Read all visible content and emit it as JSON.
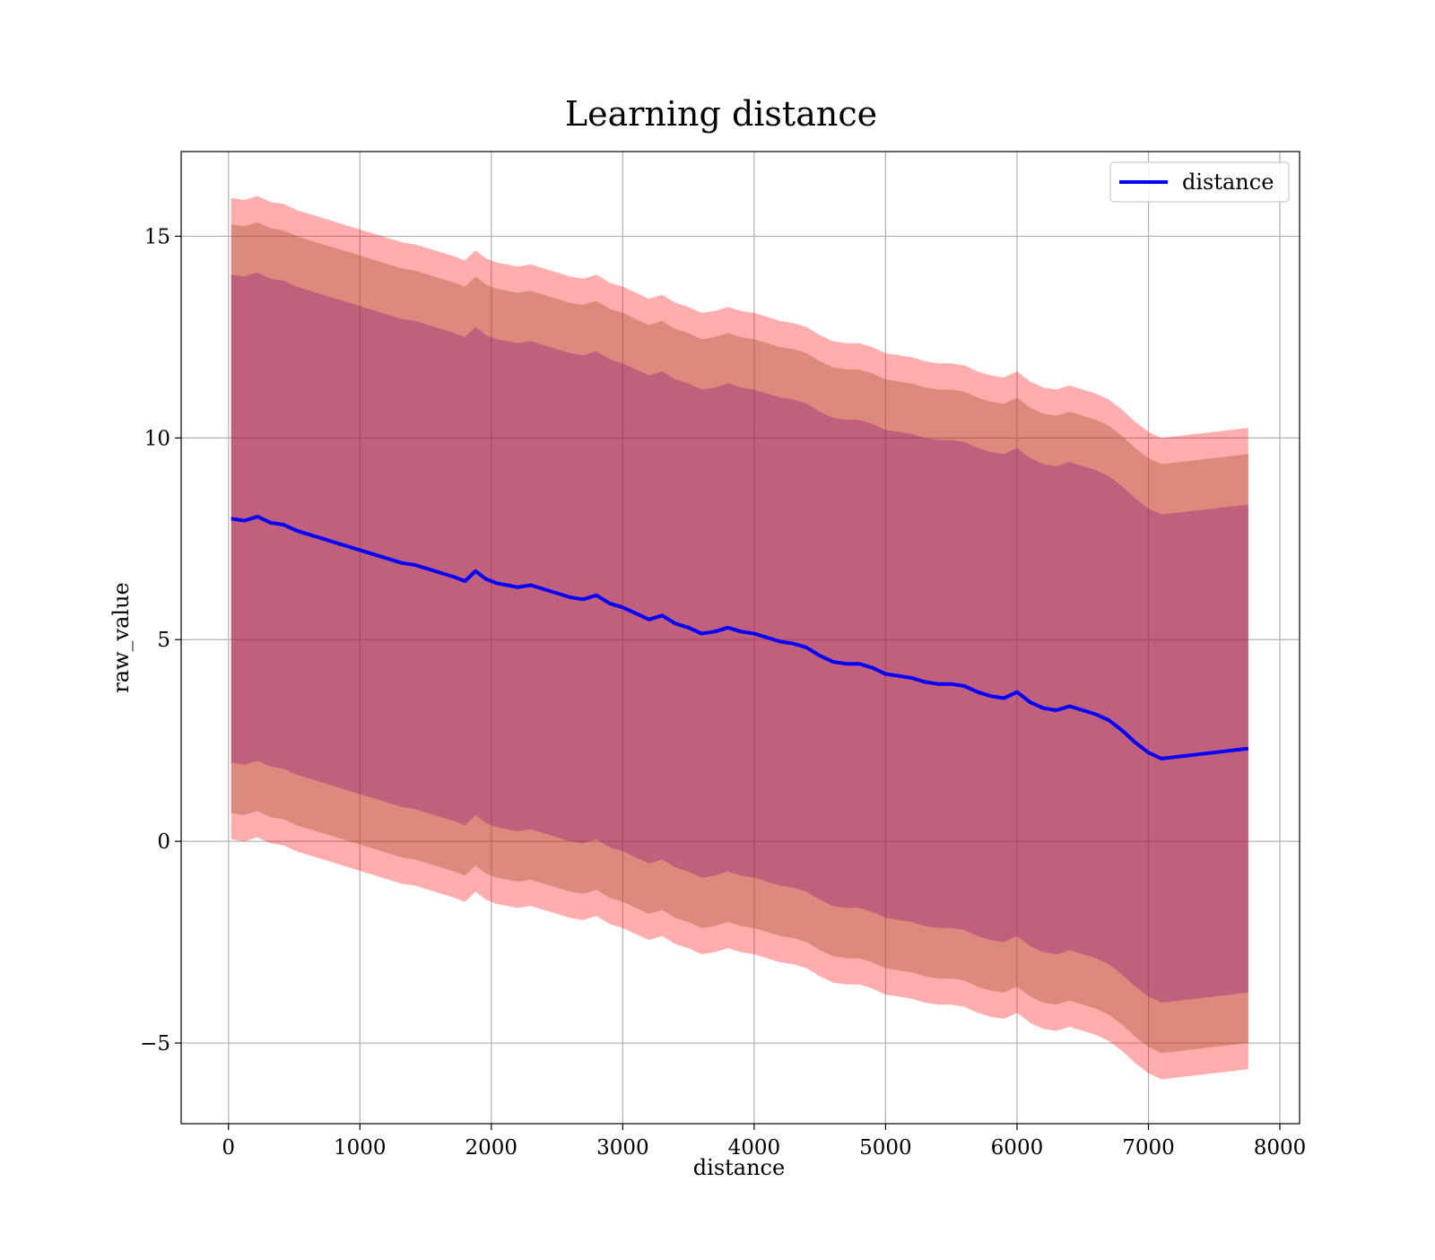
{
  "chart_data": {
    "type": "line",
    "title": "Learning distance",
    "xlabel": "distance",
    "ylabel": "raw_value",
    "xlim": [
      -360,
      8150
    ],
    "ylim": [
      -7,
      17.1
    ],
    "x_ticks": [
      0,
      1000,
      2000,
      3000,
      4000,
      5000,
      6000,
      7000,
      8000
    ],
    "x_tick_labels": [
      "0",
      "1000",
      "2000",
      "3000",
      "4000",
      "5000",
      "6000",
      "7000",
      "8000"
    ],
    "y_ticks": [
      -5,
      0,
      5,
      10,
      15
    ],
    "y_tick_labels": [
      "−5",
      "0",
      "5",
      "10",
      "15"
    ],
    "grid": true,
    "legend": {
      "position": "top-right",
      "entries": [
        "distance"
      ]
    },
    "colors": {
      "line": "#0000ff",
      "band_outer": "#ff0000",
      "band_middle": "#a0522d",
      "band_inner": "#800080"
    },
    "band_outer_opacity": 0.32,
    "band_middle_opacity": 0.38,
    "band_inner_opacity": 0.3,
    "series": [
      {
        "name": "distance",
        "x": [
          20,
          120,
          220,
          320,
          420,
          520,
          620,
          720,
          820,
          920,
          1020,
          1120,
          1220,
          1320,
          1420,
          1520,
          1620,
          1720,
          1800,
          1880,
          1960,
          2040,
          2120,
          2200,
          2300,
          2400,
          2500,
          2600,
          2700,
          2800,
          2900,
          3000,
          3100,
          3200,
          3300,
          3400,
          3500,
          3600,
          3700,
          3800,
          3900,
          4000,
          4100,
          4200,
          4300,
          4400,
          4500,
          4600,
          4700,
          4800,
          4900,
          5000,
          5100,
          5200,
          5300,
          5400,
          5500,
          5600,
          5700,
          5800,
          5900,
          6000,
          6100,
          6200,
          6300,
          6400,
          6500,
          6600,
          6700,
          6800,
          6900,
          7000,
          7100,
          7760
        ],
        "y": [
          8.0,
          7.95,
          8.05,
          7.9,
          7.85,
          7.7,
          7.6,
          7.5,
          7.4,
          7.3,
          7.2,
          7.1,
          7.0,
          6.9,
          6.85,
          6.75,
          6.65,
          6.55,
          6.45,
          6.7,
          6.5,
          6.4,
          6.35,
          6.3,
          6.35,
          6.25,
          6.15,
          6.05,
          6.0,
          6.1,
          5.9,
          5.8,
          5.65,
          5.5,
          5.6,
          5.4,
          5.3,
          5.15,
          5.2,
          5.3,
          5.2,
          5.15,
          5.05,
          4.95,
          4.9,
          4.8,
          4.6,
          4.45,
          4.4,
          4.4,
          4.3,
          4.15,
          4.1,
          4.05,
          3.95,
          3.9,
          3.9,
          3.85,
          3.7,
          3.6,
          3.55,
          3.7,
          3.45,
          3.3,
          3.25,
          3.35,
          3.25,
          3.15,
          3.0,
          2.75,
          2.45,
          2.2,
          2.05,
          2.3
        ],
        "band_inner_halfwidth": 6.05,
        "band_middle_halfwidth": 7.3,
        "band_outer_halfwidth": 7.95
      }
    ]
  }
}
